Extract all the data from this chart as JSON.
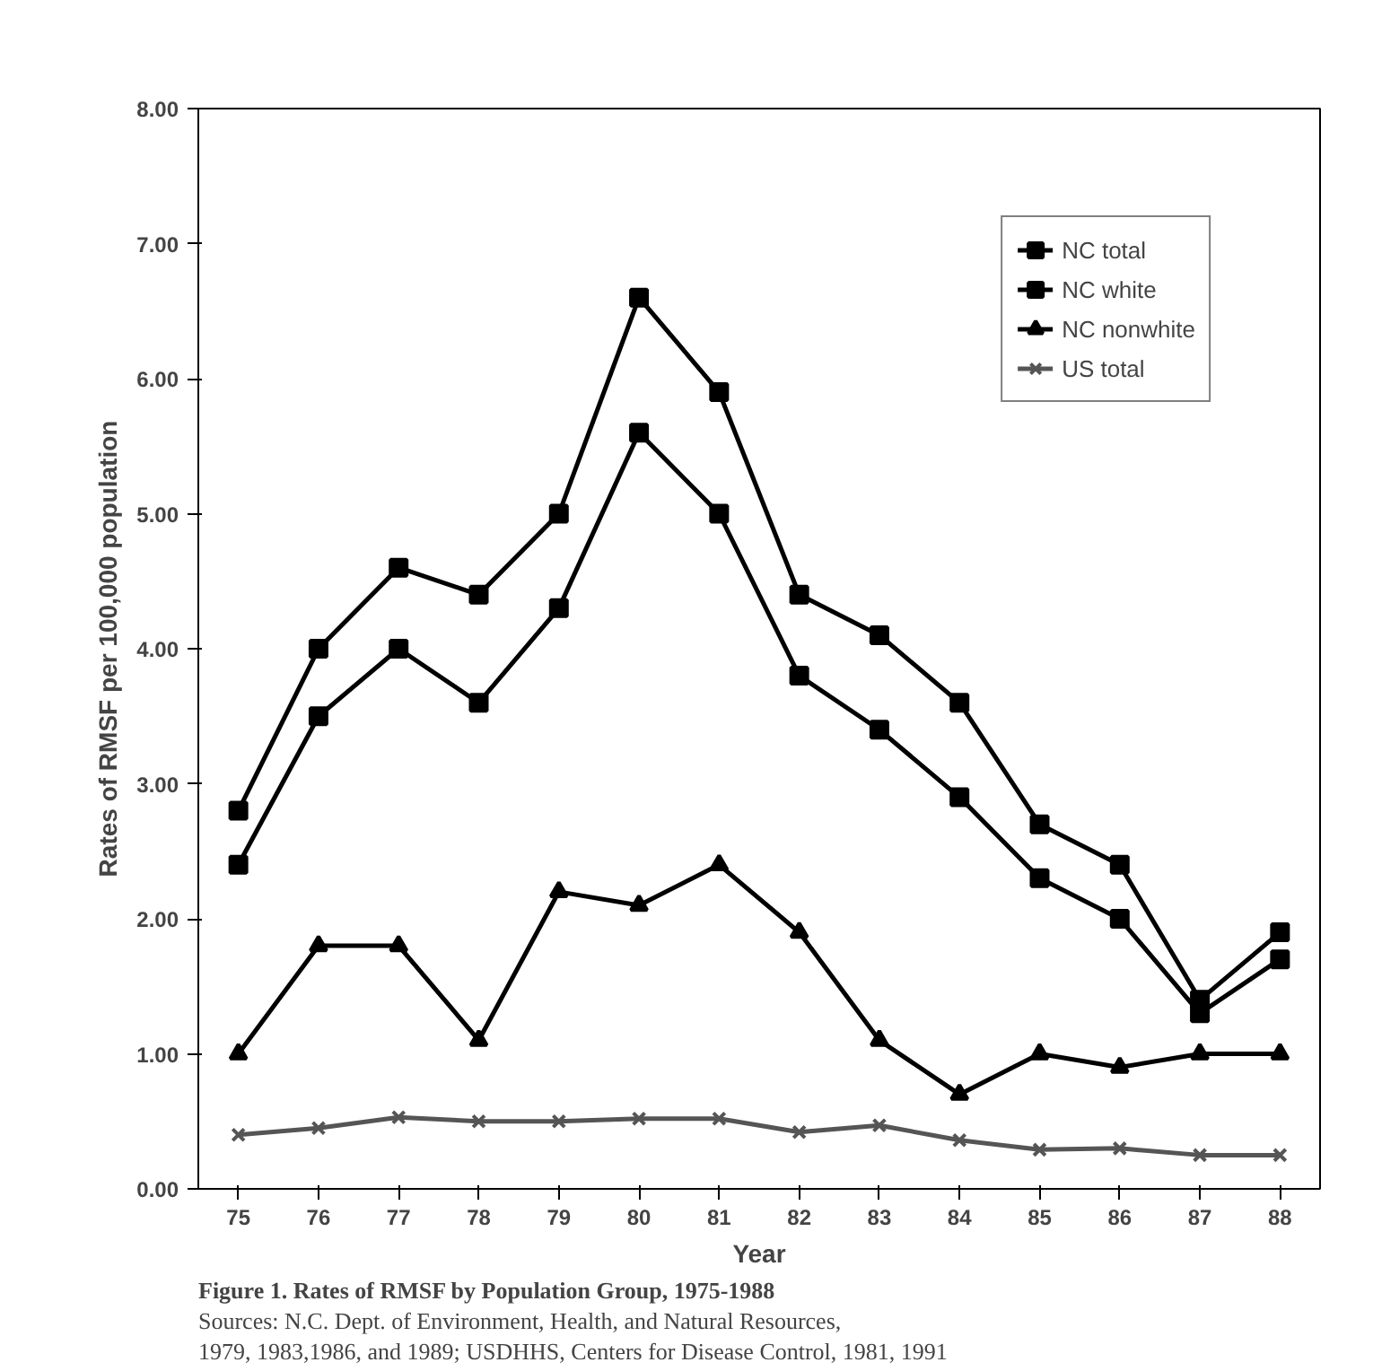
{
  "chart_data": {
    "type": "line",
    "title": "Figure 1.  Rates of RMSF by Population Group, 1975-1988",
    "xlabel": "Year",
    "ylabel": "Rates of RMSF per 100,000 population",
    "categories": [
      "75",
      "76",
      "77",
      "78",
      "79",
      "80",
      "81",
      "82",
      "83",
      "84",
      "85",
      "86",
      "87",
      "88"
    ],
    "series": [
      {
        "name": "NC total",
        "color": "#000000",
        "marker": "square",
        "values": [
          2.4,
          3.5,
          4.0,
          3.6,
          4.3,
          5.6,
          5.0,
          3.8,
          3.4,
          2.9,
          2.3,
          2.0,
          1.3,
          1.7
        ]
      },
      {
        "name": "NC white",
        "color": "#000000",
        "marker": "square",
        "values": [
          2.8,
          4.0,
          4.6,
          4.4,
          5.0,
          6.6,
          5.9,
          4.4,
          4.1,
          3.6,
          2.7,
          2.4,
          1.4,
          1.9
        ]
      },
      {
        "name": "NC nonwhite",
        "color": "#000000",
        "marker": "triangle",
        "values": [
          1.0,
          1.8,
          1.8,
          1.1,
          2.2,
          2.1,
          2.4,
          1.9,
          1.1,
          0.7,
          1.0,
          0.9,
          1.0,
          1.0
        ]
      },
      {
        "name": "US total",
        "color": "#555555",
        "marker": "cross",
        "values": [
          0.4,
          0.45,
          0.53,
          0.5,
          0.5,
          0.52,
          0.52,
          0.42,
          0.47,
          0.36,
          0.29,
          0.3,
          0.25,
          0.25
        ]
      }
    ],
    "ylim": [
      0,
      8
    ],
    "yticks": [
      {
        "value": 0,
        "label": "0.00"
      },
      {
        "value": 1,
        "label": "1.00"
      },
      {
        "value": 2,
        "label": "2.00"
      },
      {
        "value": 3,
        "label": "3.00"
      },
      {
        "value": 4,
        "label": "4.00"
      },
      {
        "value": 5,
        "label": "5.00"
      },
      {
        "value": 6,
        "label": "6.00"
      },
      {
        "value": 7,
        "label": "7.00"
      },
      {
        "value": 8,
        "label": "8.00"
      }
    ],
    "legend": "top right",
    "annotations": [
      "Sources:  N.C. Dept. of Environment, Health, and Natural Resources,",
      "1979, 1983,1986, and 1989; USDHHS, Centers for Disease Control, 1981, 1991"
    ]
  }
}
